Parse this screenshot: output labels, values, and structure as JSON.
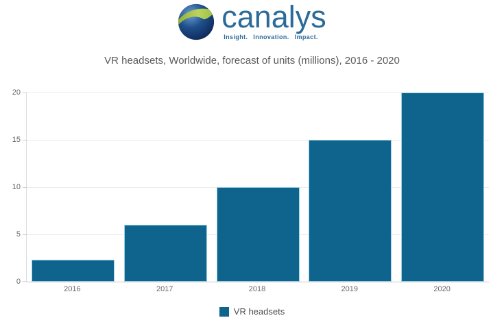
{
  "logo": {
    "brand": "canalys",
    "tagline": "Insight.  Innovation.  Impact.",
    "brand_color": "#2b6b99",
    "globe_blue_dark": "#0b2150",
    "globe_blue_light": "#6d9fd0",
    "globe_green": "#a9c445"
  },
  "title": "VR headsets, Worldwide, forecast of units (millions), 2016 - 2020",
  "chart_data": {
    "type": "bar",
    "title": "VR headsets, Worldwide, forecast of units (millions), 2016 - 2020",
    "categories": [
      "2016",
      "2017",
      "2018",
      "2019",
      "2020"
    ],
    "series": [
      {
        "name": "VR headsets",
        "values": [
          2.3,
          6,
          10,
          15,
          20
        ]
      }
    ],
    "xlabel": "",
    "ylabel": "",
    "ylim": [
      0,
      20
    ],
    "yticks": [
      0,
      5,
      10,
      15,
      20
    ],
    "grid": true,
    "legend_position": "bottom",
    "bar_color": "#0e648c",
    "bar_border_color": "#9ed2e6",
    "gridline_color": "#ebebeb",
    "axis_label_color": "#666666"
  },
  "legend": {
    "items": [
      {
        "label": "VR headsets",
        "color": "#0e648c"
      }
    ]
  }
}
